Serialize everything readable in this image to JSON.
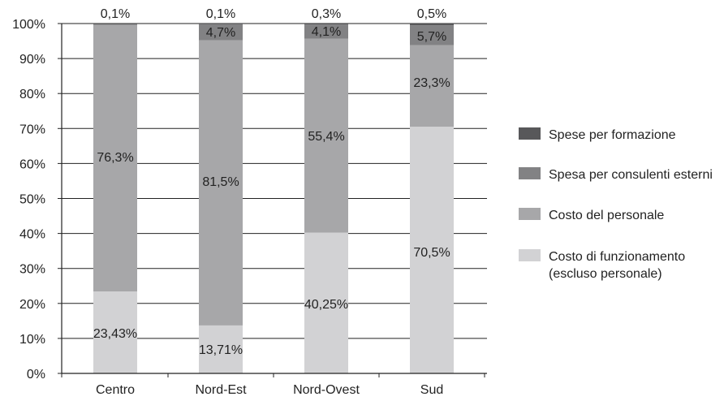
{
  "chart_data": {
    "type": "bar",
    "stacked": true,
    "title": "",
    "xlabel": "",
    "ylabel": "",
    "ylim": [
      0,
      100
    ],
    "yticks": [
      0,
      10,
      20,
      30,
      40,
      50,
      60,
      70,
      80,
      90,
      100
    ],
    "ytick_labels": [
      "0%",
      "10%",
      "20%",
      "30%",
      "40%",
      "50%",
      "60%",
      "70%",
      "80%",
      "90%",
      "100%"
    ],
    "grid": "horizontal",
    "legend_position": "right",
    "categories": [
      "Centro",
      "Nord-Est",
      "Nord-Ovest",
      "Sud"
    ],
    "series": [
      {
        "name": "Costo di funzionamento (escluso personale)",
        "legend_lines": [
          "Costo di funzionamento",
          "(escluso personale)"
        ],
        "color": "#d2d2d4",
        "values": [
          23.43,
          13.71,
          40.25,
          70.5
        ],
        "labels": [
          "23,43%",
          "13,71%",
          "40,25%",
          "70,5%"
        ]
      },
      {
        "name": "Costo del personale",
        "legend_lines": [
          "Costo del personale"
        ],
        "color": "#a7a7a9",
        "values": [
          76.3,
          81.5,
          55.4,
          23.3
        ],
        "labels": [
          "76,3%",
          "81,5%",
          "55,4%",
          "23,3%"
        ]
      },
      {
        "name": "Spesa per consulenti esterni",
        "legend_lines": [
          "Spesa per consulenti esterni"
        ],
        "color": "#828284",
        "values": [
          0,
          4.7,
          4.1,
          5.7
        ],
        "labels": [
          "",
          "4,7%",
          "4,1%",
          "5,7%"
        ]
      },
      {
        "name": "Spese per formazione",
        "legend_lines": [
          "Spese per formazione"
        ],
        "color": "#58585a",
        "values": [
          0.1,
          0.1,
          0.3,
          0.5
        ],
        "labels": [
          "0,1%",
          "0,1%",
          "0,3%",
          "0,5%"
        ]
      }
    ]
  }
}
